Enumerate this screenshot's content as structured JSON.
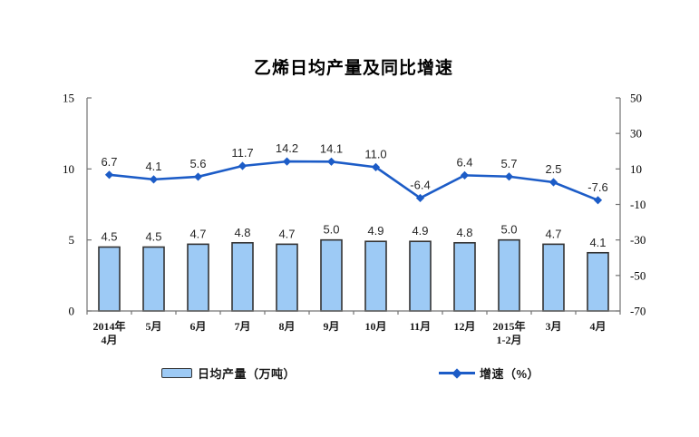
{
  "chart_data": {
    "type": "combo-bar-line",
    "title": "乙烯日均产量及同比增速",
    "categories": [
      "2014年\n4月",
      "5月",
      "6月",
      "7月",
      "8月",
      "9月",
      "10月",
      "11月",
      "12月",
      "2015年\n1-2月",
      "3月",
      "4月"
    ],
    "series": [
      {
        "name": "日均产量（万吨）",
        "type": "bar",
        "axis": "left",
        "values": [
          4.5,
          4.5,
          4.7,
          4.8,
          4.7,
          5.0,
          4.9,
          4.9,
          4.8,
          5.0,
          4.7,
          4.1
        ]
      },
      {
        "name": "增速（%）",
        "type": "line",
        "axis": "right",
        "values": [
          6.7,
          4.1,
          5.6,
          11.7,
          14.2,
          14.1,
          11.0,
          -6.4,
          6.4,
          5.7,
          2.5,
          -7.6
        ]
      }
    ],
    "left_axis": {
      "min": 0,
      "max": 15,
      "tick_values": [
        0,
        5,
        10,
        15
      ]
    },
    "right_axis": {
      "min": -70,
      "max": 50,
      "tick_values": [
        50,
        30,
        10,
        -10,
        -30,
        -50,
        -70
      ]
    },
    "grid": false,
    "legend_position": "bottom",
    "label_decimals": 1
  },
  "colors": {
    "bar_fill": "#9DCAF5",
    "bar_border": "#333333",
    "line": "#1C5CC7",
    "axis": "#737373",
    "tick_text": "#000000",
    "data_label_text": "#262626",
    "background": "#ffffff"
  }
}
